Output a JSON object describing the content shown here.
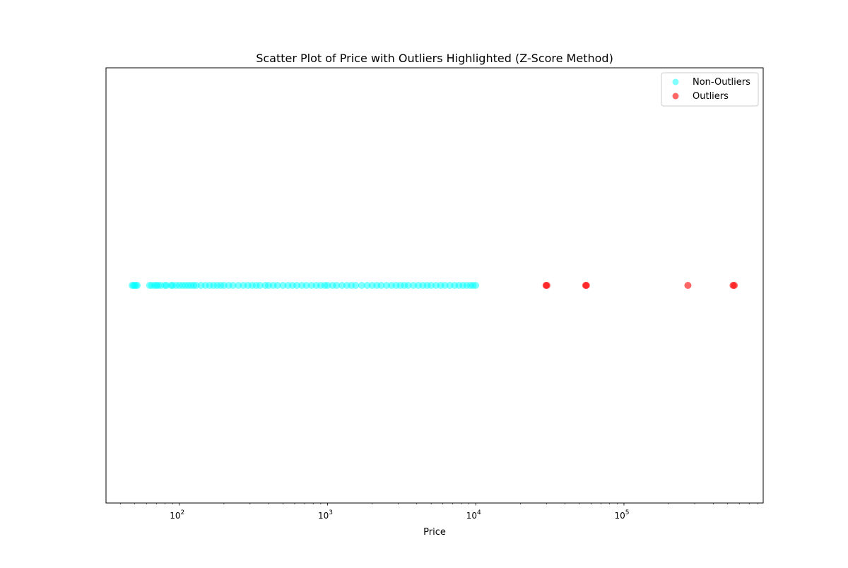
{
  "chart_data": {
    "type": "scatter",
    "title": "Scatter Plot of Price with Outliers Highlighted (Z-Score Method)",
    "xlabel": "Price",
    "ylabel": "",
    "x_scale": "log",
    "xlim": [
      32,
      870000
    ],
    "ylim": [
      -1,
      1
    ],
    "x_ticks": [
      {
        "value": 100,
        "base": "10",
        "exp": "2"
      },
      {
        "value": 1000,
        "base": "10",
        "exp": "3"
      },
      {
        "value": 10000,
        "base": "10",
        "exp": "4"
      },
      {
        "value": 100000,
        "base": "10",
        "exp": "5"
      }
    ],
    "y_ticks_visible": false,
    "grid": false,
    "legend_position": "top-right",
    "series": [
      {
        "name": "Non-Outliers",
        "color": "#00ffff",
        "opacity": 0.5,
        "y": 0,
        "x": [
          48,
          49,
          50,
          51,
          52,
          63,
          65,
          68,
          70,
          72,
          75,
          80,
          82,
          88,
          90,
          95,
          100,
          105,
          110,
          115,
          120,
          125,
          130,
          140,
          150,
          160,
          170,
          180,
          190,
          200,
          215,
          230,
          250,
          270,
          290,
          310,
          330,
          350,
          380,
          400,
          430,
          460,
          500,
          540,
          580,
          620,
          670,
          720,
          780,
          840,
          900,
          960,
          1000,
          1080,
          1150,
          1250,
          1350,
          1450,
          1550,
          1700,
          1850,
          2000,
          2150,
          2300,
          2500,
          2700,
          2900,
          3100,
          3300,
          3500,
          3800,
          4100,
          4400,
          4700,
          5000,
          5400,
          5800,
          6200,
          6700,
          7200,
          7700,
          8200,
          8700,
          9200,
          9600,
          10000
        ]
      },
      {
        "name": "Outliers",
        "color": "#ff0000",
        "opacity": 0.6,
        "y": 0,
        "x": [
          29800,
          30200,
          55200,
          55800,
          270000,
          545000,
          555000
        ]
      }
    ]
  }
}
